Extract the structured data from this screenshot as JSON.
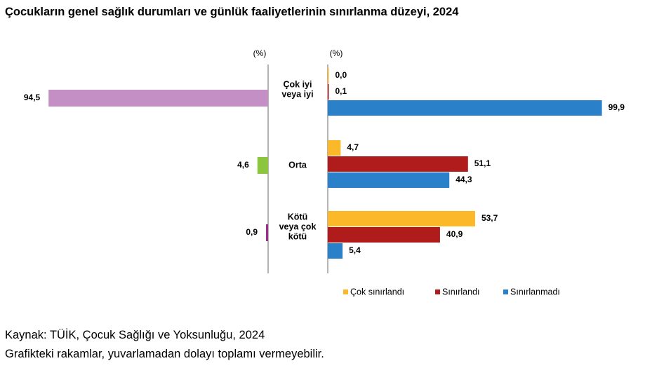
{
  "title": "Çocukların genel sağlık durumları ve günlük faaliyetlerinin sınırlanma düzeyi, 2024",
  "left_unit": "(%)",
  "right_unit": "(%)",
  "colors": {
    "left_bars": [
      "#c48fc4",
      "#8cc63f",
      "#9b2c8c"
    ],
    "series": [
      "#fbb829",
      "#b01c1c",
      "#2a81c9"
    ],
    "axis": "#8c8c8c"
  },
  "chart_data": [
    {
      "type": "bar",
      "orientation": "horizontal",
      "direction": "reversed",
      "categories": [
        "Çok iyi veya iyi",
        "Orta",
        "Kötü veya çok kötü"
      ],
      "values": [
        94.5,
        4.6,
        0.9
      ],
      "value_labels": [
        "94,5",
        "4,6",
        "0,9"
      ],
      "xlim": [
        0,
        100
      ],
      "unit": "(%)"
    },
    {
      "type": "bar",
      "orientation": "horizontal",
      "categories": [
        "Çok iyi veya iyi",
        "Orta",
        "Kötü veya çok kötü"
      ],
      "category_lines": [
        [
          "Çok iyi",
          "veya iyi"
        ],
        [
          "Orta"
        ],
        [
          "Kötü",
          "veya çok",
          "kötü"
        ]
      ],
      "series": [
        {
          "name": "Çok sınırlandı",
          "values": [
            0.0,
            4.7,
            53.7
          ],
          "value_labels": [
            "0,0",
            "4,7",
            "53,7"
          ]
        },
        {
          "name": "Sınırlandı",
          "values": [
            0.1,
            51.1,
            40.9
          ],
          "value_labels": [
            "0,1",
            "51,1",
            "40,9"
          ]
        },
        {
          "name": "Sınırlanmadı",
          "values": [
            99.9,
            44.3,
            5.4
          ],
          "value_labels": [
            "99,9",
            "44,3",
            "5,4"
          ]
        }
      ],
      "xlim": [
        0,
        100
      ],
      "unit": "(%)",
      "legend": "bottom"
    }
  ],
  "footer": {
    "source": "Kaynak: TÜİK, Çocuk Sağlığı ve Yoksunluğu, 2024",
    "note": "Grafikteki rakamlar, yuvarlamadan dolayı toplamı vermeyebilir."
  }
}
